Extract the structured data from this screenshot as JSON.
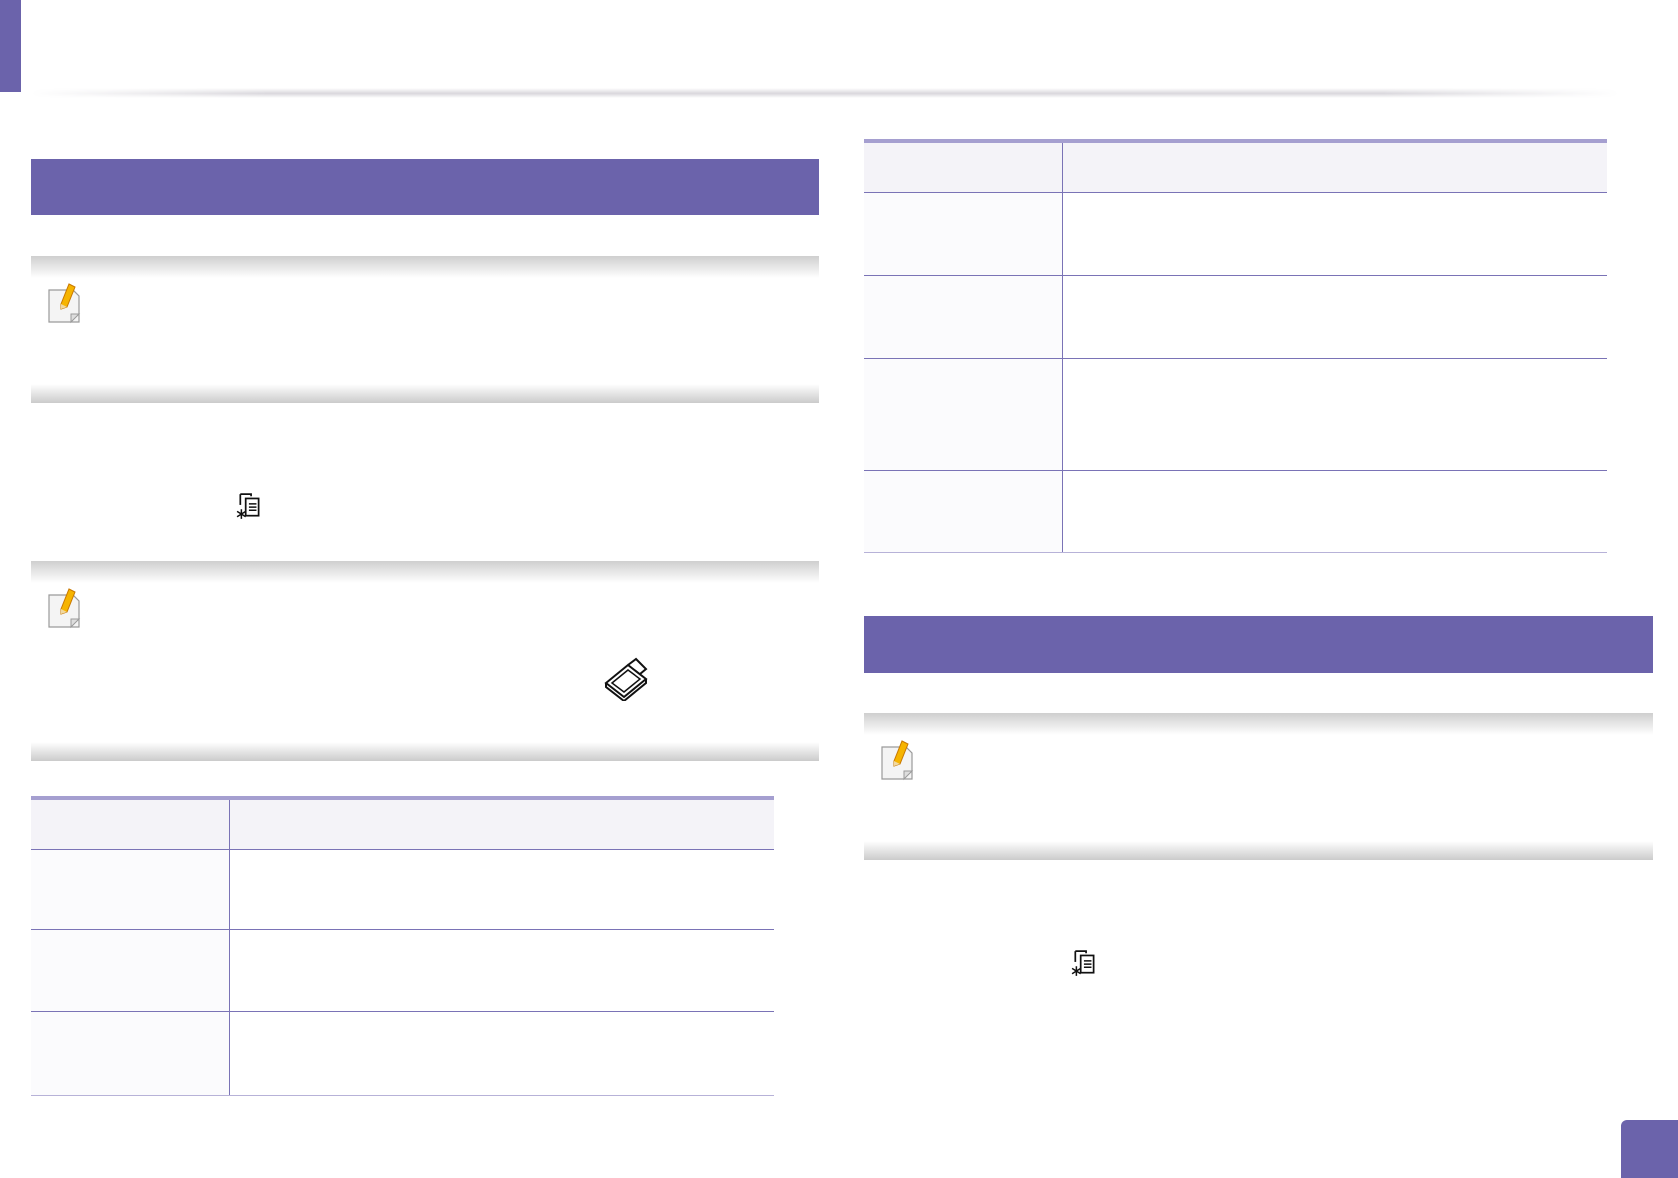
{
  "colors": {
    "accent": "#6b63ab",
    "table_rule": "#7a73b6",
    "header_row_bg": "#f4f3f8",
    "note_band": "#cfcfcf"
  },
  "left": {
    "section_title": "",
    "notes": [
      {
        "icon": "note-pencil-icon",
        "text": ""
      },
      {
        "icon": "note-pencil-icon",
        "text": ""
      }
    ],
    "step_icon": "copy-menu-icon",
    "scanner_icon": "scanner-glass-icon",
    "table": {
      "header": [
        "",
        ""
      ],
      "rows": [
        [
          "",
          ""
        ],
        [
          "",
          ""
        ],
        [
          "",
          ""
        ]
      ]
    }
  },
  "right": {
    "table": {
      "header": [
        "",
        ""
      ],
      "rows": [
        [
          "",
          ""
        ],
        [
          "",
          ""
        ],
        [
          "",
          ""
        ],
        [
          "",
          ""
        ]
      ]
    },
    "section_title": "",
    "notes": [
      {
        "icon": "note-pencil-icon",
        "text": ""
      }
    ],
    "step_icon": "copy-menu-icon"
  },
  "page_number": ""
}
